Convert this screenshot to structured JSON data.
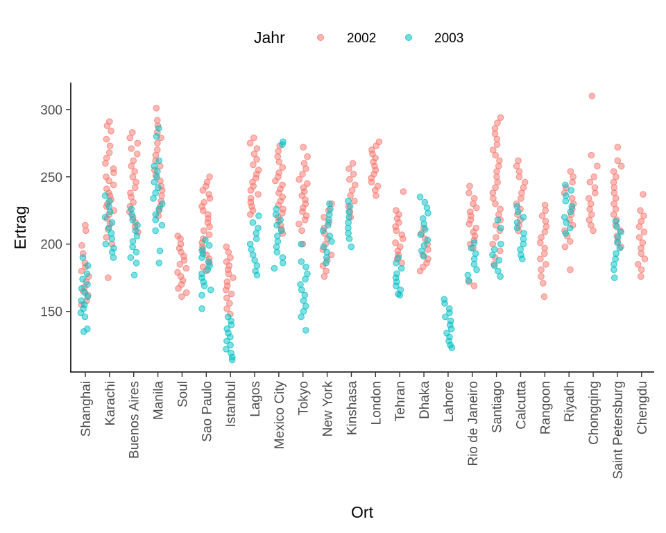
{
  "chart_data": {
    "type": "scatter",
    "title": "",
    "xlabel": "Ort",
    "ylabel": "Ertrag",
    "ylim": [
      105,
      320
    ],
    "yticks": [
      150,
      200,
      250,
      300
    ],
    "grid": false,
    "legend_position": "top",
    "legend_title": "Jahr",
    "categories": [
      "Shanghai",
      "Karachi",
      "Buenos Aires",
      "Manila",
      "Soul",
      "Sao Paulo",
      "Istanbul",
      "Lagos",
      "Mexico City",
      "Tokyo",
      "New York",
      "Kinshasa",
      "London",
      "Tehran",
      "Dhaka",
      "Lahore",
      "Rio de Janeiro",
      "Santiago",
      "Calcutta",
      "Rangoon",
      "Riyadh",
      "Chongqing",
      "Saint Petersburg",
      "Chengdu"
    ],
    "series": [
      {
        "name": "2002",
        "color": "#F8766D",
        "values": [
          [
            214,
            210,
            199,
            193,
            186,
            183,
            180,
            176,
            172,
            168,
            165,
            162,
            158,
            155
          ],
          [
            291,
            288,
            284,
            278,
            273,
            268,
            264,
            260,
            256,
            253,
            250,
            247,
            244,
            241,
            238,
            236,
            233,
            230,
            228,
            225,
            222,
            219,
            215,
            211,
            205,
            200,
            175
          ],
          [
            283,
            279,
            275,
            271,
            267,
            262,
            258,
            254,
            250,
            246,
            242,
            238,
            235,
            231,
            228,
            224,
            220,
            216,
            213,
            209
          ],
          [
            301,
            292,
            288,
            283,
            279,
            275,
            270,
            266,
            262,
            258,
            255,
            251,
            247,
            243,
            240,
            236,
            232,
            228,
            225,
            221
          ],
          [
            206,
            204,
            200,
            197,
            194,
            191,
            188,
            185,
            182,
            179,
            176,
            173,
            170,
            167,
            164,
            161
          ],
          [
            250,
            246,
            243,
            240,
            237,
            234,
            231,
            228,
            225,
            222,
            219,
            216,
            213,
            210,
            207,
            204,
            201,
            198,
            195,
            192,
            189,
            186,
            183,
            180
          ],
          [
            198,
            194,
            190,
            187,
            184,
            181,
            178,
            175,
            172,
            169,
            166,
            163,
            160,
            156,
            152,
            148
          ],
          [
            279,
            275,
            271,
            267,
            263,
            259,
            255,
            252,
            249,
            246,
            243,
            240,
            237,
            234,
            231,
            228,
            225,
            222
          ],
          [
            273,
            269,
            265,
            261,
            257,
            253,
            250,
            247,
            244,
            241,
            238,
            235,
            232,
            229,
            226,
            223,
            220,
            217,
            214,
            211,
            208
          ],
          [
            272,
            265,
            260,
            256,
            252,
            248,
            245,
            242,
            239,
            236,
            233,
            230,
            227,
            224,
            221,
            218,
            215,
            210,
            200
          ],
          [
            230,
            225,
            220,
            216,
            212,
            208,
            204,
            200,
            196,
            192,
            188,
            184,
            180,
            176
          ],
          [
            260,
            256,
            252,
            248,
            244,
            240,
            236,
            232,
            228,
            224,
            220
          ],
          [
            276,
            273,
            270,
            267,
            264,
            261,
            258,
            255,
            252,
            249,
            246,
            243,
            240,
            236
          ],
          [
            239,
            225,
            222,
            219,
            216,
            213,
            210,
            207,
            204,
            201,
            198,
            195,
            192,
            189,
            186
          ],
          [
            212,
            208,
            204,
            200,
            196,
            192,
            189,
            186,
            183,
            180
          ],
          [],
          [
            243,
            238,
            234,
            230,
            227,
            224,
            221,
            218,
            215,
            212,
            209,
            206,
            203,
            200,
            197,
            172,
            169
          ],
          [
            294,
            290,
            286,
            282,
            278,
            274,
            270,
            266,
            262,
            258,
            254,
            250,
            246,
            242,
            238,
            234,
            230,
            226,
            222,
            218,
            214,
            210,
            205,
            200,
            195,
            190,
            185
          ],
          [
            262,
            258,
            254,
            250,
            246,
            242,
            238,
            234,
            230,
            226,
            222,
            218,
            214,
            210
          ],
          [
            229,
            225,
            221,
            217,
            213,
            209,
            205,
            201,
            197,
            193,
            189,
            185,
            181,
            176,
            171,
            161
          ],
          [
            254,
            250,
            246,
            242,
            238,
            234,
            230,
            226,
            222,
            218,
            214,
            210,
            206,
            202,
            198,
            181
          ],
          [
            310,
            266,
            258,
            250,
            246,
            242,
            238,
            234,
            230,
            226,
            222,
            218,
            214,
            210
          ],
          [
            272,
            262,
            258,
            254,
            250,
            246,
            242,
            238,
            234,
            230,
            226,
            222,
            218,
            214,
            210,
            206,
            202,
            198
          ],
          [
            237,
            225,
            221,
            217,
            213,
            209,
            205,
            201,
            197,
            193,
            189,
            185,
            181,
            176
          ]
        ]
      },
      {
        "name": "2003",
        "color": "#00BFC4",
        "values": [
          [
            190,
            184,
            178,
            174,
            170,
            167,
            164,
            161,
            158,
            155,
            152,
            149,
            146,
            137,
            135
          ],
          [
            236,
            232,
            228,
            224,
            220,
            216,
            212,
            208,
            204,
            200,
            197,
            194,
            190
          ],
          [
            226,
            222,
            218,
            214,
            210,
            206,
            202,
            198,
            194,
            190,
            186,
            177
          ],
          [
            286,
            280,
            262,
            258,
            254,
            250,
            246,
            242,
            238,
            234,
            230,
            226,
            222,
            218,
            214,
            210,
            195,
            186
          ],
          [],
          [
            203,
            199,
            196,
            193,
            190,
            187,
            184,
            181,
            178,
            175,
            172,
            169,
            166,
            162,
            152
          ],
          [
            146,
            143,
            140,
            137,
            134,
            131,
            128,
            125,
            122,
            119,
            116,
            114
          ],
          [
            221,
            216,
            212,
            208,
            204,
            200,
            196,
            192,
            188,
            184,
            180,
            177
          ],
          [
            276,
            274,
            226,
            222,
            218,
            214,
            210,
            206,
            202,
            198,
            194,
            190,
            186,
            182
          ],
          [
            200,
            187,
            183,
            178,
            174,
            170,
            166,
            162,
            158,
            154,
            150,
            146,
            136
          ],
          [
            230,
            226,
            222,
            218,
            214,
            210,
            206,
            202,
            198,
            194,
            190,
            186
          ],
          [
            232,
            228,
            224,
            220,
            216,
            212,
            208,
            204,
            198
          ],
          [],
          [
            190,
            186,
            182,
            178,
            175,
            172,
            169,
            166,
            163,
            162
          ],
          [
            235,
            231,
            227,
            223,
            219,
            215,
            211,
            207,
            203,
            199,
            195,
            191
          ],
          [
            159,
            156,
            152,
            149,
            146,
            143,
            140,
            137,
            134,
            131,
            128,
            125,
            123
          ],
          [
            201,
            197,
            193,
            189,
            185,
            181,
            177,
            173
          ],
          [
            218,
            212,
            200,
            196,
            192,
            188,
            184,
            180,
            176
          ],
          [
            228,
            224,
            220,
            216,
            212,
            208,
            204,
            200,
            196,
            192,
            189
          ],
          [],
          [
            244,
            240,
            236,
            232,
            228,
            224,
            220,
            216,
            212,
            208
          ],
          [],
          [
            217,
            213,
            209,
            205,
            201,
            197,
            193,
            189,
            185,
            181,
            175
          ],
          []
        ]
      }
    ]
  }
}
